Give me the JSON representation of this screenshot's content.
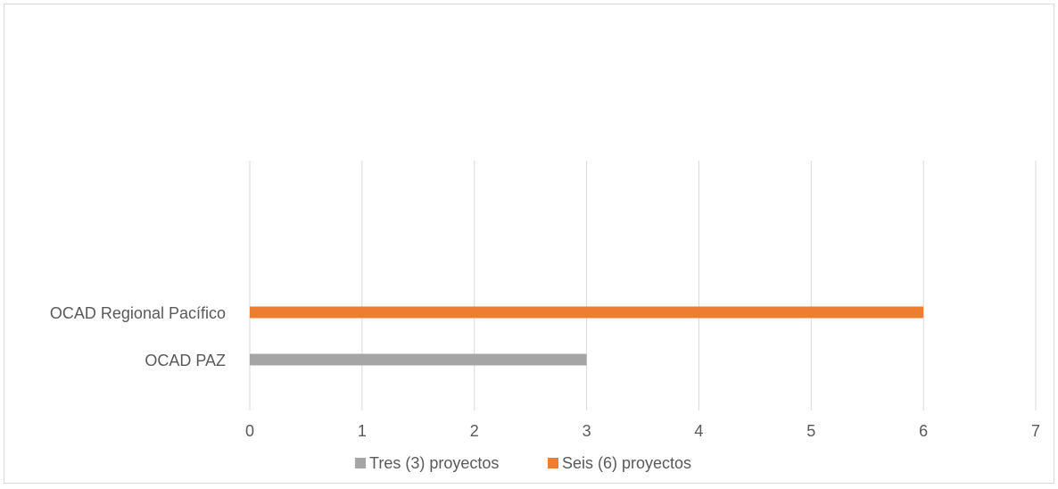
{
  "chart_data": {
    "type": "bar",
    "orientation": "horizontal",
    "title": "",
    "xlabel": "",
    "ylabel": "",
    "categories": [
      "OCAD PAZ",
      "OCAD Regional Pacífico"
    ],
    "series": [
      {
        "name": "Tres (3) proyectos",
        "color": "#a5a5a5",
        "values": [
          3,
          null
        ]
      },
      {
        "name": "Seis (6) proyectos",
        "color": "#ed7d31",
        "values": [
          null,
          6
        ]
      }
    ],
    "xlim": [
      0,
      7
    ],
    "xticks": [
      "0",
      "1",
      "2",
      "3",
      "4",
      "5",
      "6",
      "7"
    ],
    "grid": true,
    "legend_position": "bottom"
  }
}
